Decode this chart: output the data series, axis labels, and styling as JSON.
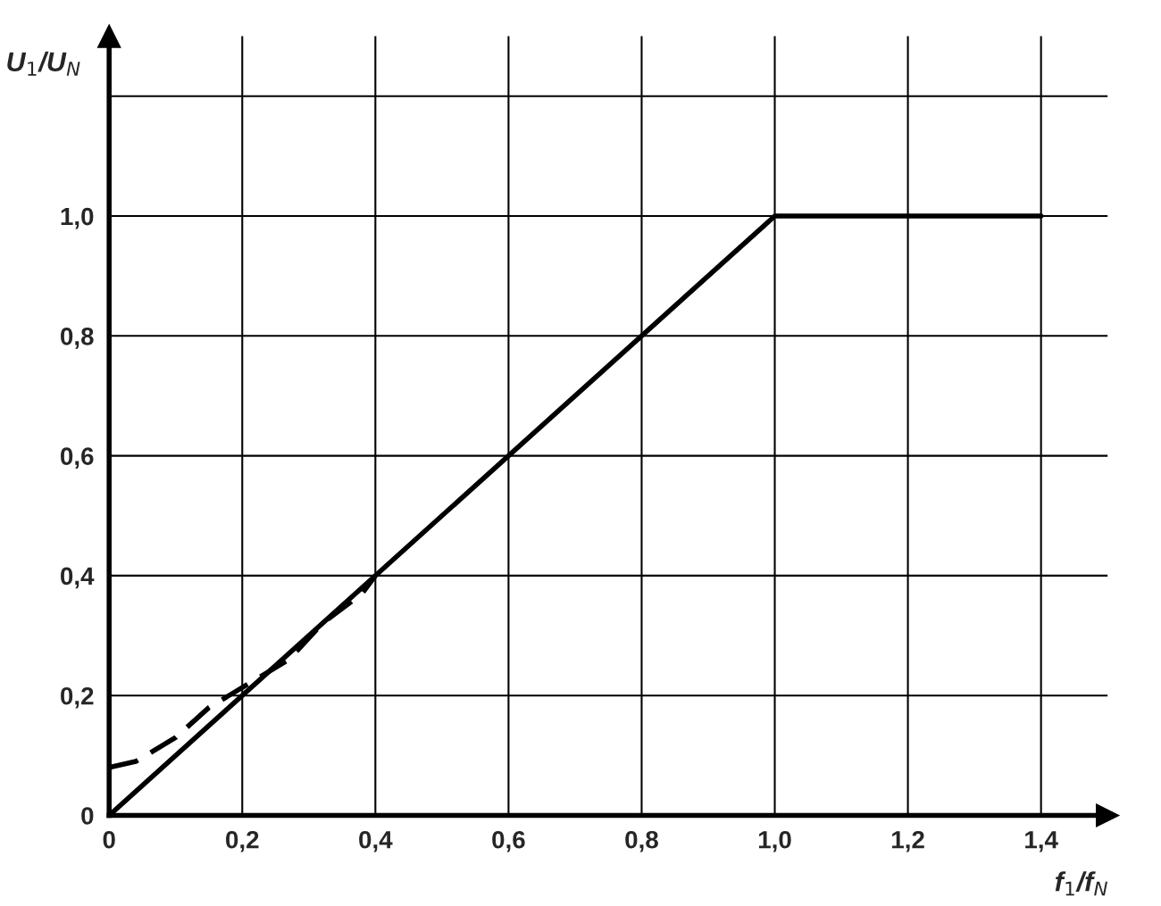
{
  "chart_data": {
    "type": "line",
    "xlabel": "f$_{1}$/f$_{N}$",
    "ylabel": "U$_{1}$/U$_{N}$",
    "xlim": [
      0,
      1.5
    ],
    "ylim": [
      0,
      1.3
    ],
    "xticks": [
      0,
      {
        "value": 0.2,
        "label": "0,2"
      },
      {
        "value": 0.4,
        "label": "0,4"
      },
      {
        "value": 0.6,
        "label": "0,6"
      },
      {
        "value": 0.8,
        "label": "0,8"
      },
      {
        "value": 1.0,
        "label": "1,0"
      },
      {
        "value": 1.2,
        "label": "1,2"
      },
      {
        "value": 1.4,
        "label": "1,4"
      }
    ],
    "yticks": [
      0,
      {
        "value": 0.2,
        "label": "0,2"
      },
      {
        "value": 0.4,
        "label": "0,4"
      },
      {
        "value": 0.6,
        "label": "0,6"
      },
      {
        "value": 0.8,
        "label": "0,8"
      },
      {
        "value": 1.0,
        "label": "1,0"
      },
      {
        "value": 1.2,
        "label": null
      }
    ],
    "grid": true,
    "series": [
      {
        "color": "#000000",
        "line_style": "solid",
        "x": [
          0,
          1.0,
          1.4
        ],
        "values": [
          0,
          1.0,
          1.0
        ]
      },
      {
        "color": "#000000",
        "line_style": "dashed",
        "x": [
          0,
          0.04,
          0.1,
          0.15,
          0.21,
          0.27,
          0.32,
          0.38,
          0.4
        ],
        "values": [
          0.08,
          0.09,
          0.13,
          0.18,
          0.22,
          0.26,
          0.32,
          0.37,
          0.4
        ]
      }
    ]
  }
}
